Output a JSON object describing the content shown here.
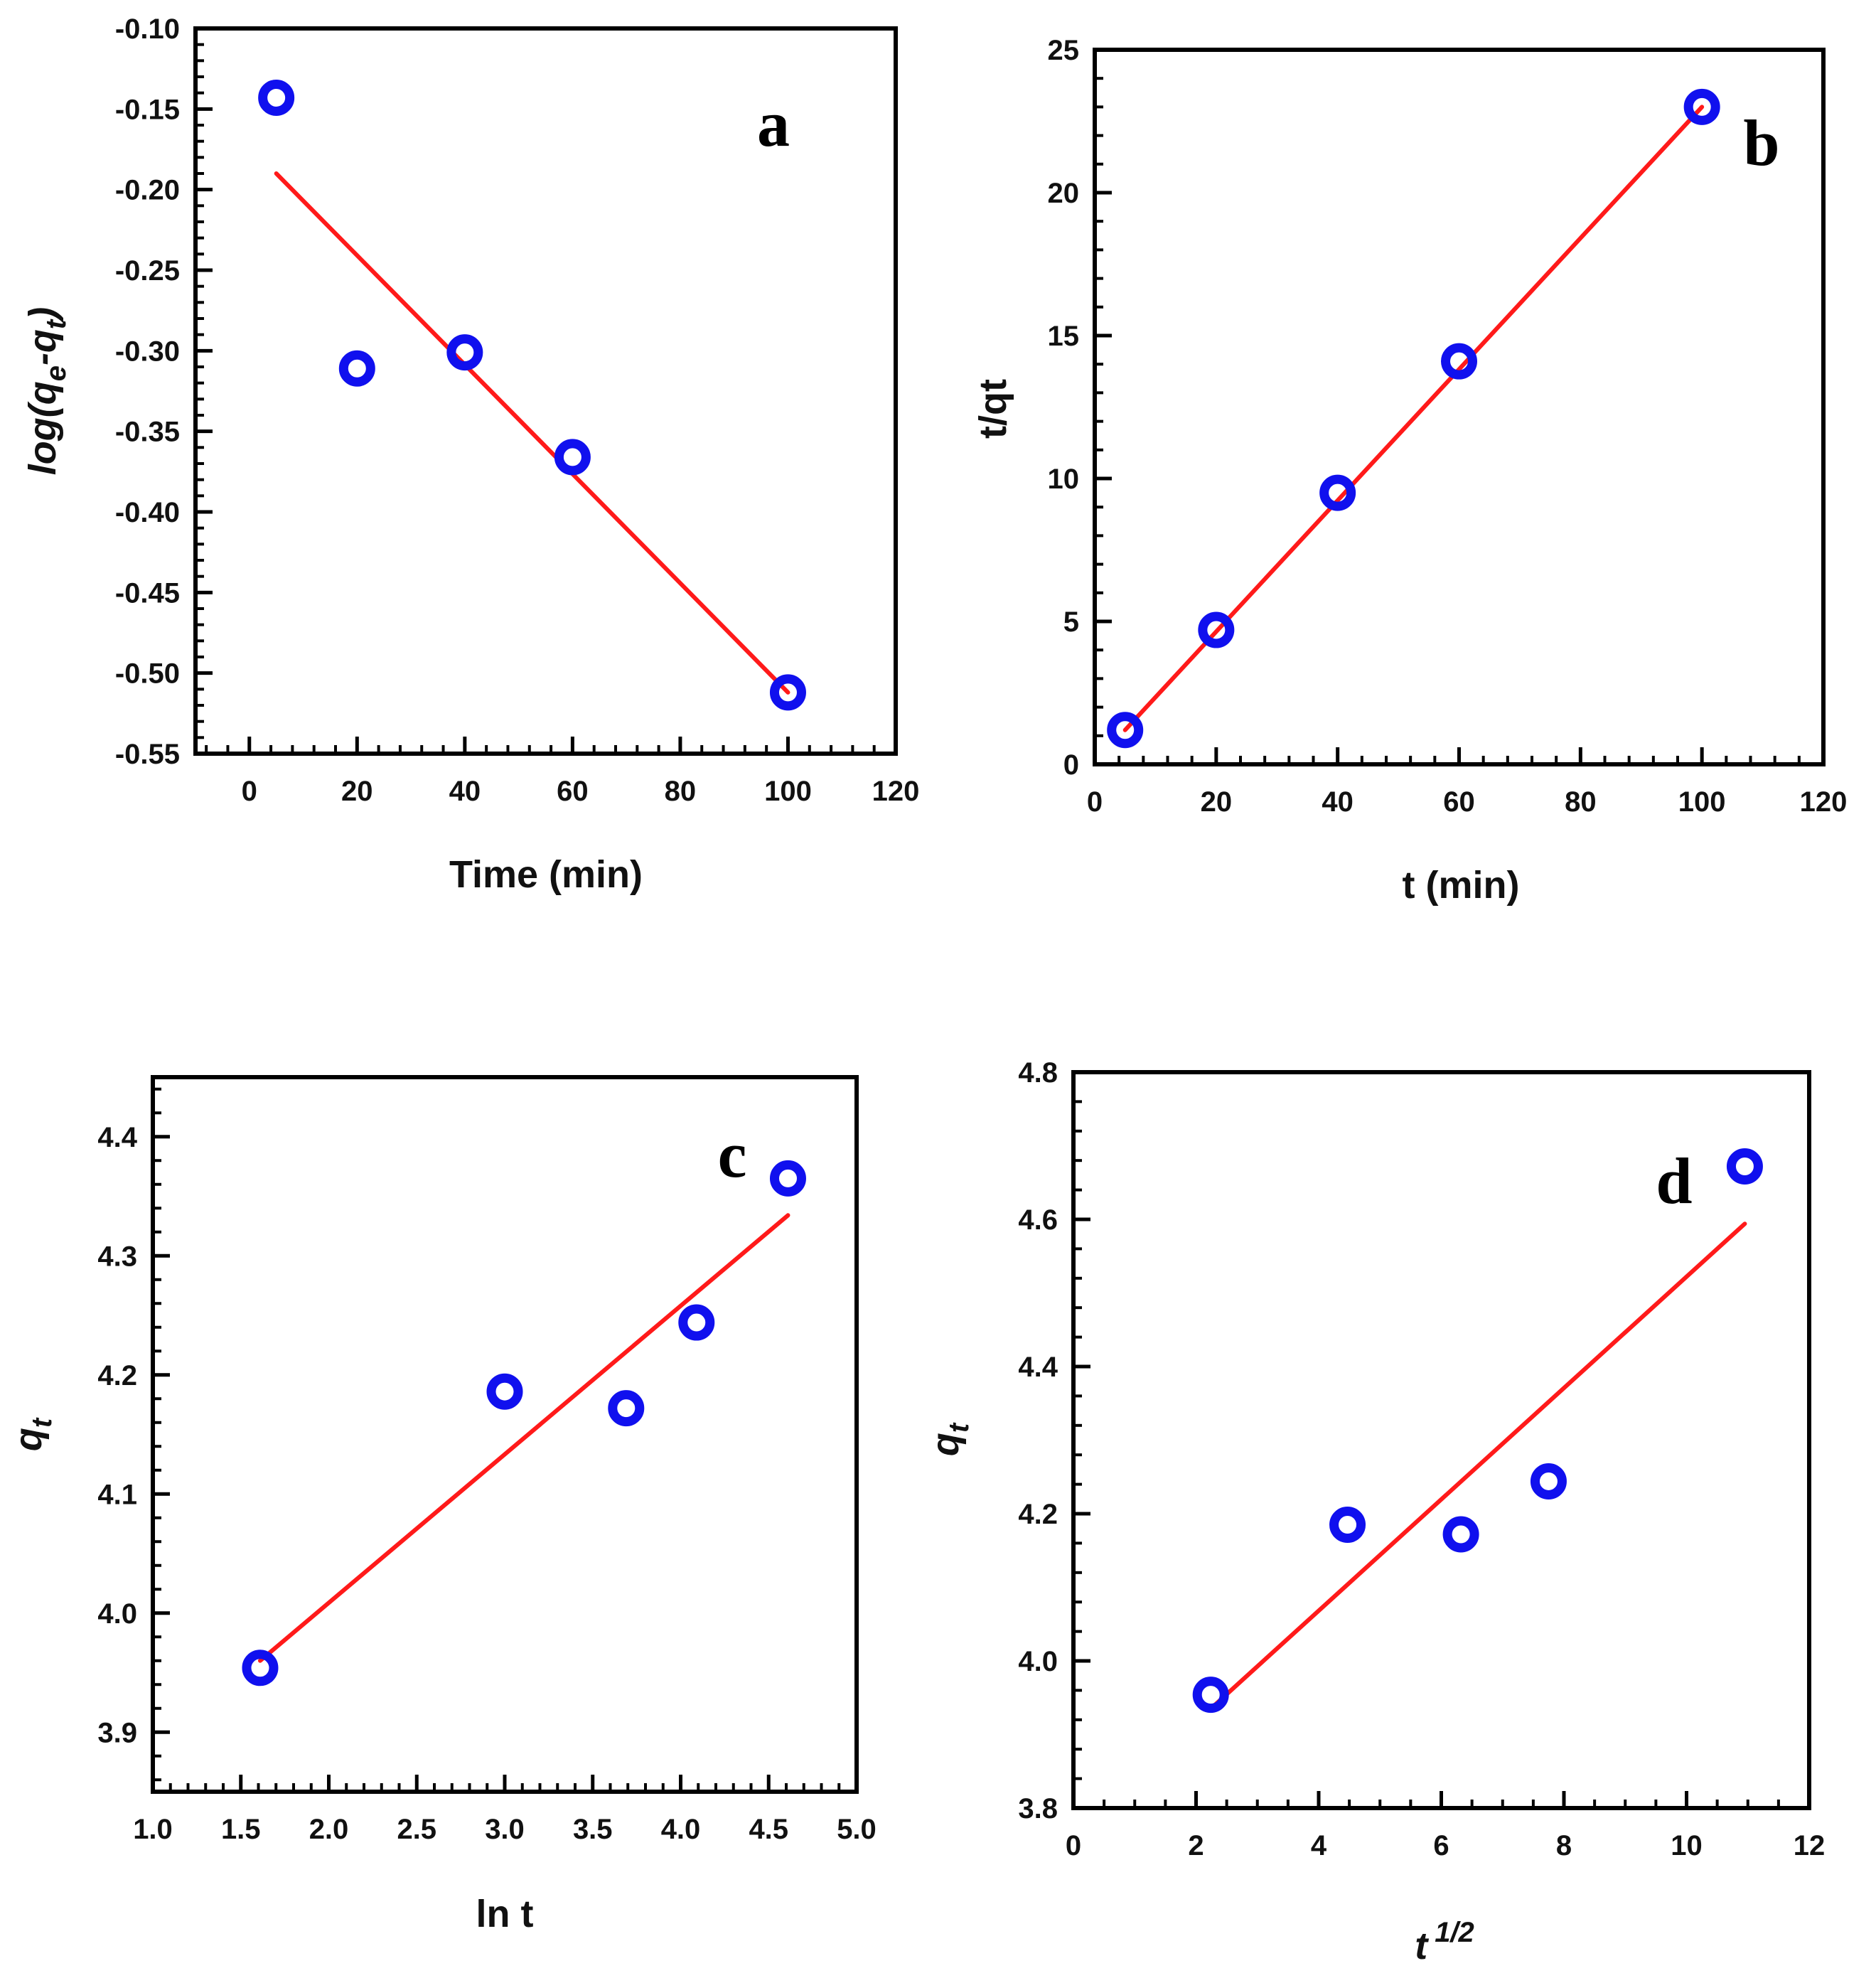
{
  "chart_data": [
    {
      "id": "a",
      "type": "scatter",
      "panel_label": "a",
      "xlabel": "Time (min)",
      "ylabel_base": "log(q",
      "ylabel_sub1": "e",
      "ylabel_mid": "-q",
      "ylabel_sub2": "t",
      "ylabel_end": ")",
      "xlim": [
        -10,
        120
      ],
      "ylim": [
        -0.55,
        -0.1
      ],
      "xticks": [
        0,
        20,
        40,
        60,
        80,
        100,
        120
      ],
      "yticks": [
        -0.55,
        -0.5,
        -0.45,
        -0.4,
        -0.35,
        -0.3,
        -0.25,
        -0.2,
        -0.15,
        -0.1
      ],
      "x_tick_labels": [
        "0",
        "20",
        "40",
        "60",
        "80",
        "100",
        "120"
      ],
      "y_tick_labels": [
        "-0.55",
        "-0.50",
        "-0.45",
        "-0.40",
        "-0.35",
        "-0.30",
        "-0.25",
        "-0.20",
        "-0.15",
        "-0.10"
      ],
      "x_minor_step": 4,
      "y_minor_step": 0.01,
      "x": [
        5,
        20,
        40,
        60,
        100
      ],
      "y": [
        -0.143,
        -0.311,
        -0.301,
        -0.366,
        -0.512
      ],
      "fit": {
        "x": [
          5,
          100
        ],
        "y": [
          -0.19,
          -0.512
        ]
      },
      "marker_color": "#1010ee",
      "line_color": "#ff1a1a"
    },
    {
      "id": "b",
      "type": "scatter",
      "panel_label": "b",
      "xlabel": "t (min)",
      "ylabel": "t/qt",
      "xlim": [
        0,
        120
      ],
      "ylim": [
        0,
        25
      ],
      "xticks": [
        0,
        20,
        40,
        60,
        80,
        100,
        120
      ],
      "yticks": [
        0,
        5,
        10,
        15,
        20,
        25
      ],
      "x_tick_labels": [
        "0",
        "20",
        "40",
        "60",
        "80",
        "100",
        "120"
      ],
      "y_tick_labels": [
        "0",
        "5",
        "10",
        "15",
        "20",
        "25"
      ],
      "x_minor_step": 4,
      "y_minor_step": 1,
      "x": [
        5,
        20,
        40,
        60,
        100
      ],
      "y": [
        1.2,
        4.7,
        9.5,
        14.1,
        23.0
      ],
      "fit": {
        "x": [
          5,
          100
        ],
        "y": [
          1.2,
          23.0
        ]
      },
      "marker_color": "#1010ee",
      "line_color": "#ff1a1a"
    },
    {
      "id": "c",
      "type": "scatter",
      "panel_label": "c",
      "xlabel": "ln t",
      "ylabel_base": "q",
      "ylabel_sub": "t",
      "xlim": [
        1.0,
        5.0
      ],
      "ylim": [
        3.85,
        4.45
      ],
      "xticks": [
        1.0,
        1.5,
        2.0,
        2.5,
        3.0,
        3.5,
        4.0,
        4.5,
        5.0
      ],
      "yticks": [
        3.9,
        4.0,
        4.1,
        4.2,
        4.3,
        4.4
      ],
      "x_tick_labels": [
        "1.0",
        "1.5",
        "2.0",
        "2.5",
        "3.0",
        "3.5",
        "4.0",
        "4.5",
        "5.0"
      ],
      "y_tick_labels": [
        "3.9",
        "4.0",
        "4.1",
        "4.2",
        "4.3",
        "4.4"
      ],
      "x_minor_step": 0.1,
      "y_minor_step": 0.02,
      "x": [
        1.61,
        3.0,
        3.69,
        4.09,
        4.61
      ],
      "y": [
        3.954,
        4.186,
        4.172,
        4.244,
        4.365
      ],
      "fit": {
        "x": [
          1.61,
          4.61
        ],
        "y": [
          3.96,
          4.334
        ]
      },
      "marker_color": "#1010ee",
      "line_color": "#ff1a1a"
    },
    {
      "id": "d",
      "type": "scatter",
      "panel_label": "d",
      "xlabel_base": "t",
      "xlabel_sup": "1/2",
      "ylabel_base": "q",
      "ylabel_sub": "t",
      "xlim": [
        0,
        12
      ],
      "ylim": [
        3.8,
        4.8
      ],
      "xticks": [
        0,
        2,
        4,
        6,
        8,
        10,
        12
      ],
      "yticks": [
        3.8,
        4.0,
        4.2,
        4.4,
        4.6,
        4.8
      ],
      "x_tick_labels": [
        "0",
        "2",
        "4",
        "6",
        "8",
        "10",
        "12"
      ],
      "y_tick_labels": [
        "3.8",
        "4.0",
        "4.2",
        "4.4",
        "4.6",
        "4.8"
      ],
      "x_minor_step": 0.5,
      "y_minor_step": 0.04,
      "x": [
        2.24,
        4.47,
        6.32,
        7.75,
        10.95
      ],
      "y": [
        3.954,
        4.185,
        4.172,
        4.244,
        4.672
      ],
      "fit": {
        "x": [
          2.24,
          10.95
        ],
        "y": [
          3.935,
          4.594
        ]
      },
      "marker_color": "#1010ee",
      "line_color": "#ff1a1a"
    }
  ]
}
